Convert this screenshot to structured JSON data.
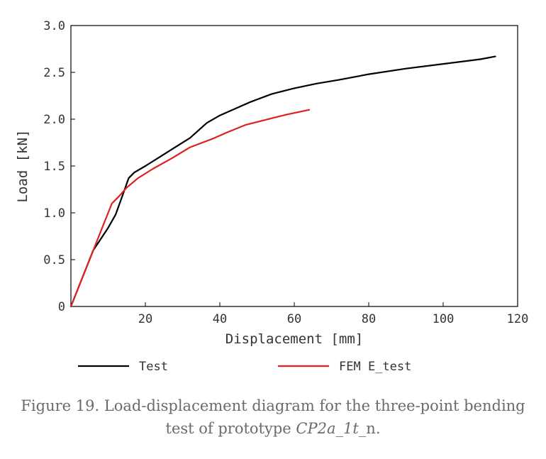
{
  "chart_data": {
    "type": "line",
    "xlabel": "Displacement [mm]",
    "ylabel": "Load [kN]",
    "xlim": [
      0,
      120
    ],
    "ylim": [
      0,
      3.0
    ],
    "x_ticks": [
      "20",
      "40",
      "60",
      "80",
      "100",
      "120"
    ],
    "y_ticks": [
      "0",
      "0.5",
      "1.0",
      "1.5",
      "2.0",
      "2.5",
      "3.0"
    ],
    "grid": false,
    "legend_position": "bottom",
    "series": [
      {
        "name": "Test",
        "color": "#000000",
        "x": [
          0,
          3,
          6,
          8,
          10,
          12,
          14,
          15.5,
          17,
          20,
          24,
          28,
          32,
          36.5,
          40,
          44,
          48,
          54,
          60,
          66,
          72,
          80,
          90,
          100,
          110,
          114
        ],
        "y": [
          0,
          0.3,
          0.6,
          0.72,
          0.84,
          0.98,
          1.2,
          1.37,
          1.43,
          1.5,
          1.6,
          1.7,
          1.8,
          1.96,
          2.04,
          2.11,
          2.18,
          2.27,
          2.33,
          2.38,
          2.42,
          2.48,
          2.54,
          2.59,
          2.64,
          2.67
        ]
      },
      {
        "name": "FEM E_test",
        "color": "#e02020",
        "x": [
          0,
          5,
          8,
          11,
          13,
          15,
          18,
          22,
          27,
          32,
          38,
          42,
          47,
          52,
          58,
          64
        ],
        "y": [
          0,
          0.5,
          0.8,
          1.1,
          1.18,
          1.27,
          1.37,
          1.47,
          1.58,
          1.7,
          1.79,
          1.86,
          1.94,
          1.99,
          2.05,
          2.1
        ]
      }
    ]
  },
  "caption": {
    "line1": "Figure 19. Load-displacement diagram for the three-point bending",
    "line2_prefix": "test of prototype ",
    "line2_italic": "CP2a_1t",
    "line2_suffix": "_n."
  }
}
